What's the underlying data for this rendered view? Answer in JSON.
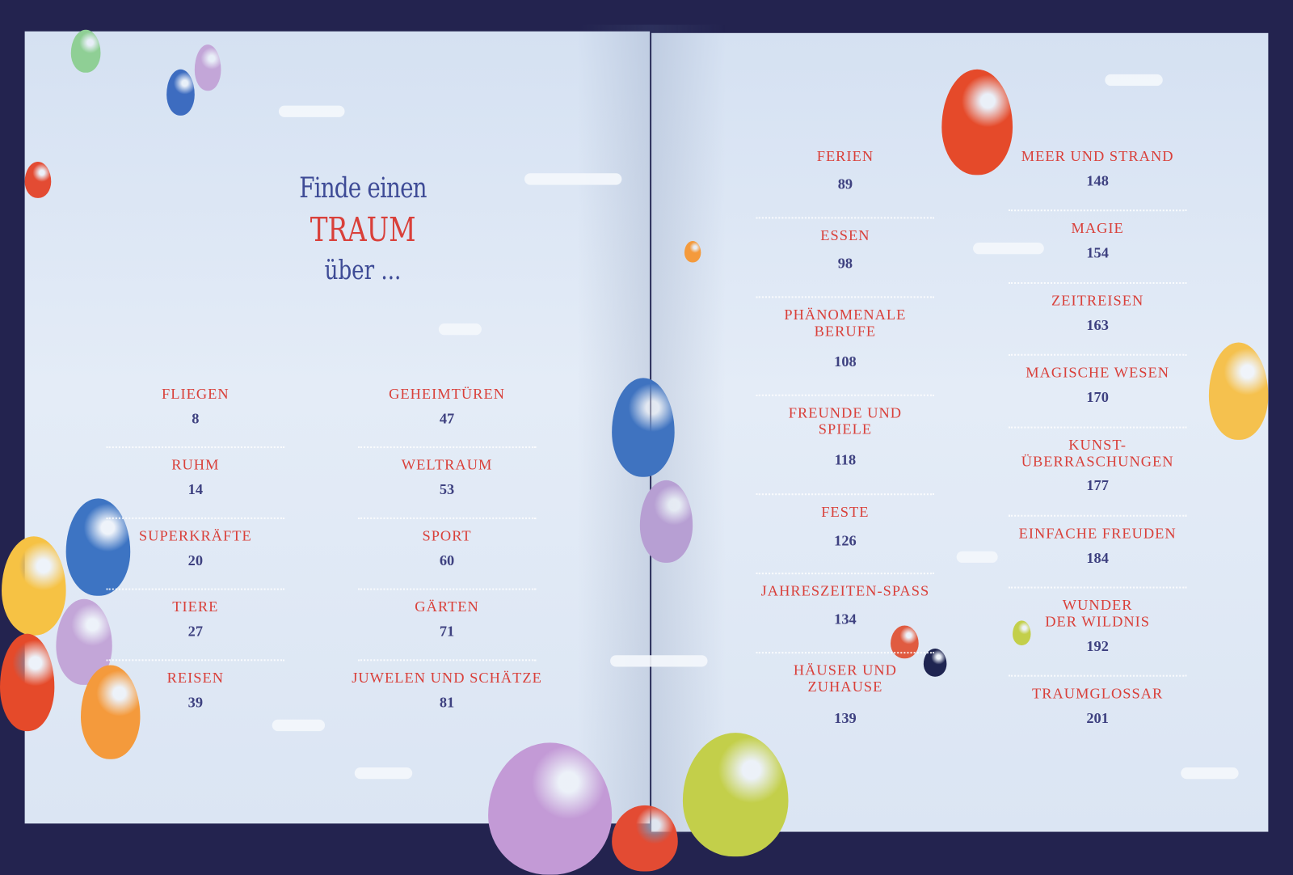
{
  "heading": {
    "line1": "Finde einen",
    "highlight": "TRAUM",
    "line2_rest": "über ..."
  },
  "colors": {
    "label": "#d9403a",
    "number": "#3e4180",
    "frame": "#23234f",
    "sky": "#dde7f4"
  },
  "left_page": {
    "col1": [
      {
        "label": "FLIEGEN",
        "page": "8"
      },
      {
        "label": "RUHM",
        "page": "14"
      },
      {
        "label": "SUPERKRÄFTE",
        "page": "20"
      },
      {
        "label": "TIERE",
        "page": "27"
      },
      {
        "label": "REISEN",
        "page": "39"
      }
    ],
    "col2": [
      {
        "label": "GEHEIMTÜREN",
        "page": "47"
      },
      {
        "label": "WELTRAUM",
        "page": "53"
      },
      {
        "label": "SPORT",
        "page": "60"
      },
      {
        "label": "GÄRTEN",
        "page": "71"
      },
      {
        "label": "JUWELEN UND SCHÄTZE",
        "page": "81"
      }
    ]
  },
  "right_page": {
    "col1": [
      {
        "label": "FERIEN",
        "page": "89"
      },
      {
        "label": "ESSEN",
        "page": "98"
      },
      {
        "label": "PHÄNOMENALE\nBERUFE",
        "page": "108"
      },
      {
        "label": "FREUNDE UND\nSPIELE",
        "page": "118"
      },
      {
        "label": "FESTE",
        "page": "126"
      },
      {
        "label": "JAHRESZEITEN-SPASS",
        "page": "134"
      },
      {
        "label": "HÄUSER UND\nZUHAUSE",
        "page": "139"
      }
    ],
    "col2": [
      {
        "label": "MEER UND STRAND",
        "page": "148"
      },
      {
        "label": "MAGIE",
        "page": "154"
      },
      {
        "label": "ZEITREISEN",
        "page": "163"
      },
      {
        "label": "MAGISCHE WESEN",
        "page": "170"
      },
      {
        "label": "KUNST-\nÜBERRASCHUNGEN",
        "page": "177"
      },
      {
        "label": "EINFACHE FREUDEN",
        "page": "184"
      },
      {
        "label": "WUNDER\nDER WILDNIS",
        "page": "192"
      },
      {
        "label": "TRAUMGLOSSAR",
        "page": "201"
      }
    ]
  }
}
